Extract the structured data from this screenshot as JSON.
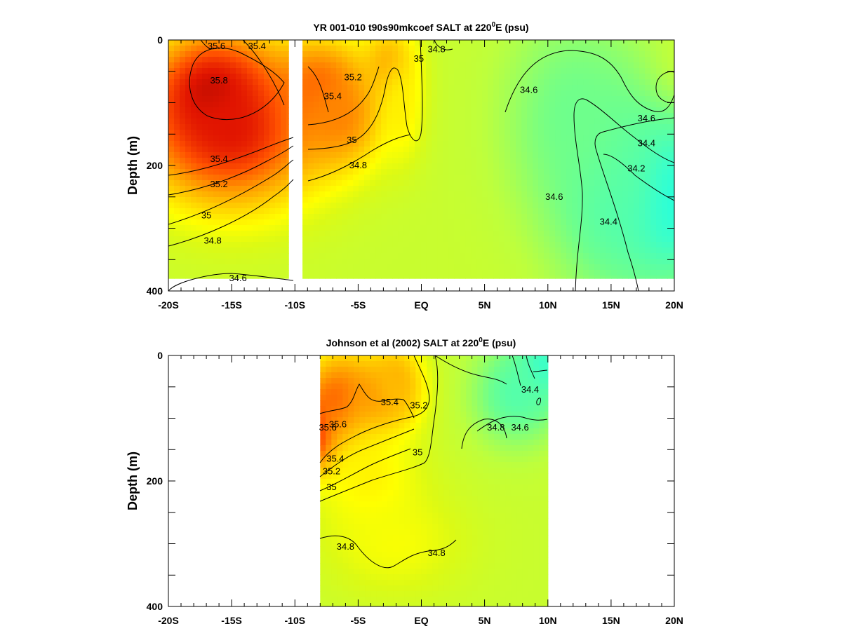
{
  "chart_data": [
    {
      "type": "heatmap",
      "panel_id": "model",
      "title": {
        "prefix": "YR 001-010 t90s90mkcoef SALT at 220",
        "sup": "0",
        "suffix": "E (psu)"
      },
      "xlabel": "",
      "ylabel": "Depth (m)",
      "xlim": [
        -20,
        20
      ],
      "ylim": [
        400,
        0
      ],
      "x_ticks": [
        {
          "v": -20,
          "label": "-20S"
        },
        {
          "v": -15,
          "label": "-15S"
        },
        {
          "v": -10,
          "label": "-10S"
        },
        {
          "v": -5,
          "label": "-5S"
        },
        {
          "v": 0,
          "label": "EQ"
        },
        {
          "v": 5,
          "label": "5N"
        },
        {
          "v": 10,
          "label": "10N"
        },
        {
          "v": 15,
          "label": "15N"
        },
        {
          "v": 20,
          "label": "20N"
        }
      ],
      "y_ticks": [
        {
          "v": 0,
          "label": "0"
        },
        {
          "v": 200,
          "label": "200"
        },
        {
          "v": 400,
          "label": "400"
        }
      ],
      "data_coverage": {
        "lat_segments": [
          [
            -20,
            -10.5
          ],
          [
            -9.4,
            20
          ]
        ],
        "depth_max": 380
      },
      "salinity_blobs": [
        {
          "lat": -16.5,
          "depth": 90,
          "value": 35.9,
          "s_lat": 3.0,
          "s_dep": 60
        },
        {
          "lat": -15,
          "depth": 140,
          "value": 35.7,
          "s_lat": 5.0,
          "s_dep": 90
        },
        {
          "lat": -8,
          "depth": 80,
          "value": 35.5,
          "s_lat": 2.2,
          "s_dep": 50
        },
        {
          "lat": -6.5,
          "depth": 120,
          "value": 35.35,
          "s_lat": 2.5,
          "s_dep": 60
        },
        {
          "lat": -2.5,
          "depth": 40,
          "value": 35.25,
          "s_lat": 1.5,
          "s_dep": 45
        },
        {
          "lat": -1.5,
          "depth": 110,
          "value": 35.0,
          "s_lat": 1.2,
          "s_dep": 60
        },
        {
          "lat": 19.5,
          "depth": 80,
          "value": 34.85,
          "s_lat": 1.8,
          "s_dep": 45
        },
        {
          "lat": 19.5,
          "depth": 250,
          "value": 34.1,
          "s_lat": 3.0,
          "s_dep": 90
        },
        {
          "lat": 15,
          "depth": 230,
          "value": 34.35,
          "s_lat": 3.5,
          "s_dep": 120
        },
        {
          "lat": 12,
          "depth": 120,
          "value": 34.5,
          "s_lat": 4.0,
          "s_dep": 120
        }
      ],
      "background_value": 34.75,
      "contour_labels": [
        {
          "text": "35.6",
          "lat": -16.2,
          "depth": 10
        },
        {
          "text": "35.4",
          "lat": -13.0,
          "depth": 10
        },
        {
          "text": "35.8",
          "lat": -16.0,
          "depth": 65
        },
        {
          "text": "35.4",
          "lat": -16.0,
          "depth": 190
        },
        {
          "text": "35.2",
          "lat": -16.0,
          "depth": 230
        },
        {
          "text": "35",
          "lat": -17.0,
          "depth": 280
        },
        {
          "text": "34.8",
          "lat": -16.5,
          "depth": 320
        },
        {
          "text": "34.6",
          "lat": -14.5,
          "depth": 380
        },
        {
          "text": "35.4",
          "lat": -7.0,
          "depth": 90
        },
        {
          "text": "35.2",
          "lat": -5.4,
          "depth": 60
        },
        {
          "text": "35",
          "lat": -5.5,
          "depth": 160
        },
        {
          "text": "34.8",
          "lat": -5.0,
          "depth": 200
        },
        {
          "text": "35",
          "lat": -0.2,
          "depth": 30
        },
        {
          "text": "34.8",
          "lat": 1.2,
          "depth": 15
        },
        {
          "text": "34.6",
          "lat": 8.5,
          "depth": 80
        },
        {
          "text": "34.6",
          "lat": 10.5,
          "depth": 250
        },
        {
          "text": "34.6",
          "lat": 17.8,
          "depth": 125
        },
        {
          "text": "34.4",
          "lat": 17.8,
          "depth": 165
        },
        {
          "text": "34.2",
          "lat": 17.0,
          "depth": 205
        },
        {
          "text": "34.4",
          "lat": 14.8,
          "depth": 290
        }
      ]
    },
    {
      "type": "heatmap",
      "panel_id": "obs",
      "title": {
        "prefix": "Johnson et al (2002) SALT at 220",
        "sup": "0",
        "suffix": "E (psu)"
      },
      "xlabel": "",
      "ylabel": "Depth (m)",
      "xlim": [
        -20,
        20
      ],
      "ylim": [
        400,
        0
      ],
      "x_ticks": [
        {
          "v": -20,
          "label": "-20S"
        },
        {
          "v": -15,
          "label": "-15S"
        },
        {
          "v": -10,
          "label": "-10S"
        },
        {
          "v": -5,
          "label": "-5S"
        },
        {
          "v": 0,
          "label": "EQ"
        },
        {
          "v": 5,
          "label": "5N"
        },
        {
          "v": 10,
          "label": "10N"
        },
        {
          "v": 15,
          "label": "15N"
        },
        {
          "v": 20,
          "label": "20N"
        }
      ],
      "y_ticks": [
        {
          "v": 0,
          "label": "0"
        },
        {
          "v": 200,
          "label": "200"
        },
        {
          "v": 400,
          "label": "400"
        }
      ],
      "data_coverage": {
        "lat_segments": [
          [
            -8,
            10
          ]
        ],
        "depth_max": 400
      },
      "salinity_blobs": [
        {
          "lat": -8,
          "depth": 125,
          "value": 35.95,
          "s_lat": 1.0,
          "s_dep": 40
        },
        {
          "lat": -6.5,
          "depth": 80,
          "value": 35.5,
          "s_lat": 2.0,
          "s_dep": 60
        },
        {
          "lat": -3.5,
          "depth": 70,
          "value": 35.4,
          "s_lat": 2.0,
          "s_dep": 40
        },
        {
          "lat": -2,
          "depth": 40,
          "value": 35.2,
          "s_lat": 1.6,
          "s_dep": 45
        },
        {
          "lat": -4,
          "depth": 200,
          "value": 35.0,
          "s_lat": 3.0,
          "s_dep": 70
        },
        {
          "lat": -2,
          "depth": 300,
          "value": 34.93,
          "s_lat": 4.0,
          "s_dep": 60
        },
        {
          "lat": 9.5,
          "depth": 20,
          "value": 34.2,
          "s_lat": 1.4,
          "s_dep": 40
        },
        {
          "lat": 7.5,
          "depth": 60,
          "value": 34.4,
          "s_lat": 2.5,
          "s_dep": 60
        }
      ],
      "background_value": 34.75,
      "contour_labels": [
        {
          "text": "35.4",
          "lat": -2.5,
          "depth": 75
        },
        {
          "text": "35.2",
          "lat": -0.2,
          "depth": 80
        },
        {
          "text": "35.6",
          "lat": -6.6,
          "depth": 110
        },
        {
          "text": "35.6",
          "lat": -7.4,
          "depth": 115
        },
        {
          "text": "35",
          "lat": -0.3,
          "depth": 155
        },
        {
          "text": "35.4",
          "lat": -6.8,
          "depth": 165
        },
        {
          "text": "35.2",
          "lat": -7.1,
          "depth": 185
        },
        {
          "text": "35",
          "lat": -7.1,
          "depth": 210
        },
        {
          "text": "34.8",
          "lat": 5.9,
          "depth": 115
        },
        {
          "text": "34.6",
          "lat": 7.8,
          "depth": 115
        },
        {
          "text": "34.4",
          "lat": 8.6,
          "depth": 55
        },
        {
          "text": "34.8",
          "lat": -6.0,
          "depth": 305
        },
        {
          "text": "34.8",
          "lat": 1.2,
          "depth": 315
        }
      ]
    }
  ]
}
